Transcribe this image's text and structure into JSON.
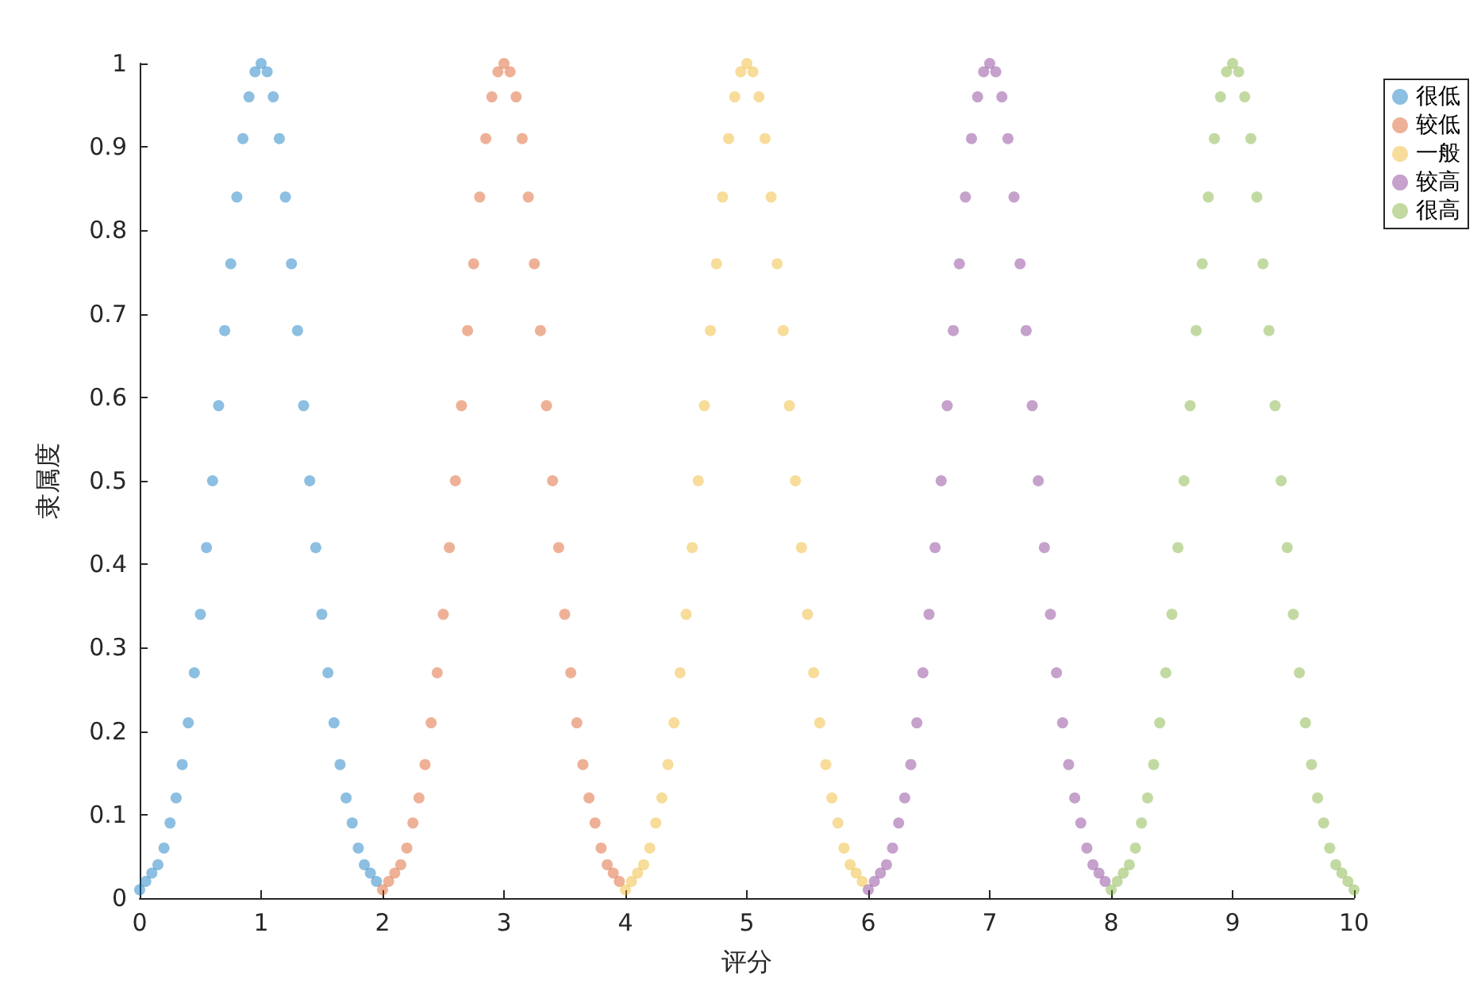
{
  "chart_data": {
    "type": "scatter",
    "xlabel": "评分",
    "ylabel": "隶属度",
    "xlim": [
      0,
      10
    ],
    "xticks": [
      0,
      1,
      2,
      3,
      4,
      5,
      6,
      7,
      8,
      9,
      10
    ],
    "ylim": [
      0,
      1
    ],
    "yticks": [
      0,
      0.1,
      0.2,
      0.3,
      0.4,
      0.5,
      0.6,
      0.7,
      0.8,
      0.9,
      1
    ],
    "grid": false,
    "legend": "top right",
    "marker": "circle",
    "series": [
      {
        "name": "很低",
        "color": "#0072bd",
        "x": [
          0,
          0.05,
          0.1,
          0.15,
          0.2,
          0.25,
          0.3,
          0.35,
          0.4,
          0.45,
          0.5,
          0.55,
          0.6,
          0.65,
          0.7,
          0.75,
          0.8,
          0.85,
          0.9,
          0.95,
          1,
          1.05,
          1.1,
          1.15,
          1.2,
          1.25,
          1.3,
          1.35,
          1.4,
          1.45,
          1.5,
          1.55,
          1.6,
          1.65,
          1.7,
          1.75,
          1.8,
          1.85,
          1.9,
          1.95
        ],
        "values": [
          0.01,
          0.02,
          0.03,
          0.04,
          0.06,
          0.09,
          0.12,
          0.16,
          0.21,
          0.27,
          0.34,
          0.42,
          0.5,
          0.59,
          0.68,
          0.76,
          0.84,
          0.91,
          0.96,
          0.99,
          1,
          0.99,
          0.96,
          0.91,
          0.84,
          0.76,
          0.68,
          0.59,
          0.5,
          0.42,
          0.34,
          0.27,
          0.21,
          0.16,
          0.12,
          0.09,
          0.06,
          0.04,
          0.03,
          0.02
        ]
      },
      {
        "name": "较低",
        "color": "#d95319",
        "x": [
          2,
          2.05,
          2.1,
          2.15,
          2.2,
          2.25,
          2.3,
          2.35,
          2.4,
          2.45,
          2.5,
          2.55,
          2.6,
          2.65,
          2.7,
          2.75,
          2.8,
          2.85,
          2.9,
          2.95,
          3,
          3.05,
          3.1,
          3.15,
          3.2,
          3.25,
          3.3,
          3.35,
          3.4,
          3.45,
          3.5,
          3.55,
          3.6,
          3.65,
          3.7,
          3.75,
          3.8,
          3.85,
          3.9,
          3.95
        ],
        "values": [
          0.01,
          0.02,
          0.03,
          0.04,
          0.06,
          0.09,
          0.12,
          0.16,
          0.21,
          0.27,
          0.34,
          0.42,
          0.5,
          0.59,
          0.68,
          0.76,
          0.84,
          0.91,
          0.96,
          0.99,
          1,
          0.99,
          0.96,
          0.91,
          0.84,
          0.76,
          0.68,
          0.59,
          0.5,
          0.42,
          0.34,
          0.27,
          0.21,
          0.16,
          0.12,
          0.09,
          0.06,
          0.04,
          0.03,
          0.02
        ]
      },
      {
        "name": "一般",
        "color": "#edb120",
        "x": [
          4,
          4.05,
          4.1,
          4.15,
          4.2,
          4.25,
          4.3,
          4.35,
          4.4,
          4.45,
          4.5,
          4.55,
          4.6,
          4.65,
          4.7,
          4.75,
          4.8,
          4.85,
          4.9,
          4.95,
          5,
          5.05,
          5.1,
          5.15,
          5.2,
          5.25,
          5.3,
          5.35,
          5.4,
          5.45,
          5.5,
          5.55,
          5.6,
          5.65,
          5.7,
          5.75,
          5.8,
          5.85,
          5.9,
          5.95
        ],
        "values": [
          0.01,
          0.02,
          0.03,
          0.04,
          0.06,
          0.09,
          0.12,
          0.16,
          0.21,
          0.27,
          0.34,
          0.42,
          0.5,
          0.59,
          0.68,
          0.76,
          0.84,
          0.91,
          0.96,
          0.99,
          1,
          0.99,
          0.96,
          0.91,
          0.84,
          0.76,
          0.68,
          0.59,
          0.5,
          0.42,
          0.34,
          0.27,
          0.21,
          0.16,
          0.12,
          0.09,
          0.06,
          0.04,
          0.03,
          0.02
        ]
      },
      {
        "name": "较高",
        "color": "#7e2f8e",
        "x": [
          6,
          6.05,
          6.1,
          6.15,
          6.2,
          6.25,
          6.3,
          6.35,
          6.4,
          6.45,
          6.5,
          6.55,
          6.6,
          6.65,
          6.7,
          6.75,
          6.8,
          6.85,
          6.9,
          6.95,
          7,
          7.05,
          7.1,
          7.15,
          7.2,
          7.25,
          7.3,
          7.35,
          7.4,
          7.45,
          7.5,
          7.55,
          7.6,
          7.65,
          7.7,
          7.75,
          7.8,
          7.85,
          7.9,
          7.95
        ],
        "values": [
          0.01,
          0.02,
          0.03,
          0.04,
          0.06,
          0.09,
          0.12,
          0.16,
          0.21,
          0.27,
          0.34,
          0.42,
          0.5,
          0.59,
          0.68,
          0.76,
          0.84,
          0.91,
          0.96,
          0.99,
          1,
          0.99,
          0.96,
          0.91,
          0.84,
          0.76,
          0.68,
          0.59,
          0.5,
          0.42,
          0.34,
          0.27,
          0.21,
          0.16,
          0.12,
          0.09,
          0.06,
          0.04,
          0.03,
          0.02
        ]
      },
      {
        "name": "很高",
        "color": "#77ac30",
        "x": [
          8,
          8.05,
          8.1,
          8.15,
          8.2,
          8.25,
          8.3,
          8.35,
          8.4,
          8.45,
          8.5,
          8.55,
          8.6,
          8.65,
          8.7,
          8.75,
          8.8,
          8.85,
          8.9,
          8.95,
          9,
          9.05,
          9.1,
          9.15,
          9.2,
          9.25,
          9.3,
          9.35,
          9.4,
          9.45,
          9.5,
          9.55,
          9.6,
          9.65,
          9.7,
          9.75,
          9.8,
          9.85,
          9.9,
          9.95,
          10
        ],
        "values": [
          0.01,
          0.02,
          0.03,
          0.04,
          0.06,
          0.09,
          0.12,
          0.16,
          0.21,
          0.27,
          0.34,
          0.42,
          0.5,
          0.59,
          0.68,
          0.76,
          0.84,
          0.91,
          0.96,
          0.99,
          1,
          0.99,
          0.96,
          0.91,
          0.84,
          0.76,
          0.68,
          0.59,
          0.5,
          0.42,
          0.34,
          0.27,
          0.21,
          0.16,
          0.12,
          0.09,
          0.06,
          0.04,
          0.03,
          0.02,
          0.01
        ]
      }
    ]
  }
}
